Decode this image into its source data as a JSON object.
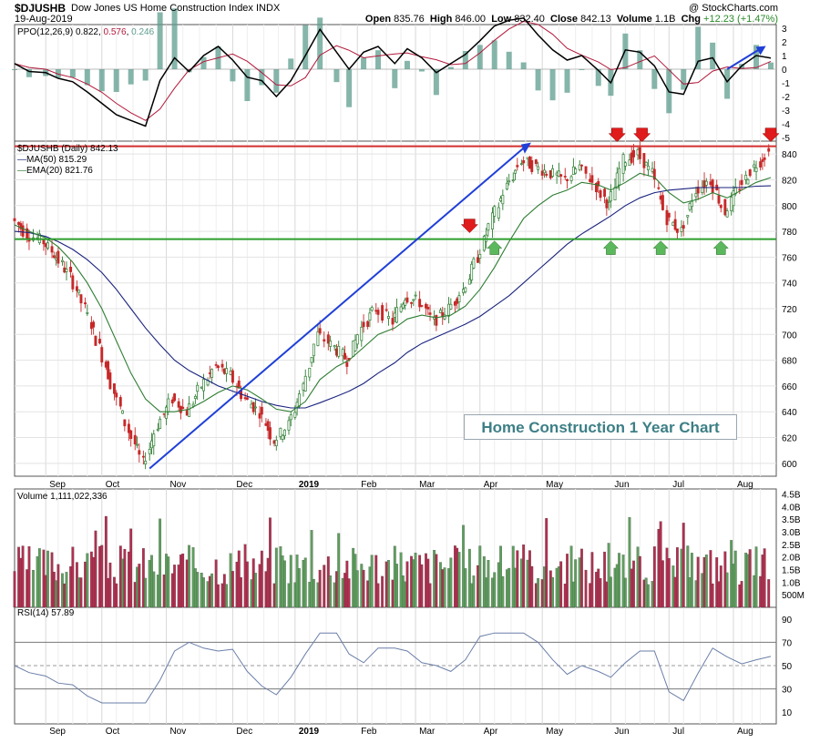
{
  "header": {
    "ticker": "$DJUSHB",
    "name": "Dow Jones US Home Construction Index",
    "exchange": "INDX",
    "copyright": "@ StockCharts.com",
    "date": "19-Aug-2019",
    "open_label": "Open",
    "open": "835.76",
    "high_label": "High",
    "high": "846.00",
    "low_label": "Low",
    "low": "832.40",
    "close_label": "Close",
    "close": "842.13",
    "volume_label": "Volume",
    "volume": "1.1B",
    "chg_label": "Chg",
    "chg": "+12.23 (+1.47%)"
  },
  "ppo": {
    "label": "PPO(12,26,9)",
    "ppo_value": "0.822",
    "signal_value": "0.576",
    "hist_value": "0.246",
    "ticks": [
      "3",
      "2",
      "1",
      "0",
      "-1",
      "-2",
      "-3",
      "-4",
      "-5"
    ],
    "colors": {
      "ppo": "#000000",
      "signal": "#b2183a",
      "hist": "#5d9c8e"
    }
  },
  "price": {
    "label": "$DJUSHB (Daily) 842.13",
    "ma50_label": "MA(50) 815.29",
    "ema20_label": "EMA(20) 821.76",
    "ticks": [
      "840",
      "820",
      "800",
      "780",
      "760",
      "740",
      "720",
      "700",
      "680",
      "660",
      "640",
      "620",
      "600"
    ],
    "colors": {
      "up": "#2e7d32",
      "down": "#c62828",
      "ma50": "#1a237e",
      "ema20": "#2e7d32",
      "resistance": "#d32f2f",
      "support": "#2e9e2e",
      "trendline": "#1f3fd8"
    }
  },
  "volume": {
    "label": "Volume 1,111,022,336",
    "ticks": [
      "4.5B",
      "4.0B",
      "3.5B",
      "3.0B",
      "2.5B",
      "2.0B",
      "1.5B",
      "1.0B",
      "500M"
    ]
  },
  "rsi": {
    "label": "RSI(14) 57.89",
    "ticks": [
      "90",
      "70",
      "50",
      "30",
      "10"
    ]
  },
  "x_axis": {
    "labels": [
      "Sep",
      "Oct",
      "Nov",
      "Dec",
      "2019",
      "Feb",
      "Mar",
      "Apr",
      "May",
      "Jun",
      "Jul",
      "Aug"
    ]
  },
  "annotation": "Home Construction 1 Year Chart",
  "chart_data": {
    "type": "line",
    "title": "Home Construction 1 Year Chart",
    "x": [
      "2018-08-20",
      "2018-08-27",
      "2018-09-04",
      "2018-09-10",
      "2018-09-17",
      "2018-09-24",
      "2018-10-01",
      "2018-10-08",
      "2018-10-15",
      "2018-10-22",
      "2018-10-29",
      "2018-11-05",
      "2018-11-12",
      "2018-11-19",
      "2018-11-26",
      "2018-12-03",
      "2018-12-10",
      "2018-12-17",
      "2018-12-24",
      "2018-12-31",
      "2019-01-07",
      "2019-01-14",
      "2019-01-22",
      "2019-01-28",
      "2019-02-04",
      "2019-02-11",
      "2019-02-19",
      "2019-02-25",
      "2019-03-04",
      "2019-03-11",
      "2019-03-18",
      "2019-03-25",
      "2019-04-01",
      "2019-04-08",
      "2019-04-15",
      "2019-04-22",
      "2019-04-29",
      "2019-05-06",
      "2019-05-13",
      "2019-05-20",
      "2019-05-28",
      "2019-06-03",
      "2019-06-10",
      "2019-06-17",
      "2019-06-24",
      "2019-07-01",
      "2019-07-08",
      "2019-07-15",
      "2019-07-22",
      "2019-07-29",
      "2019-08-05",
      "2019-08-12",
      "2019-08-19"
    ],
    "series": [
      {
        "name": "$DJUSHB",
        "values": [
          790,
          778,
          772,
          760,
          745,
          720,
          690,
          655,
          625,
          600,
          630,
          650,
          640,
          660,
          675,
          668,
          650,
          640,
          618,
          630,
          660,
          700,
          690,
          680,
          705,
          720,
          710,
          730,
          725,
          710,
          720,
          735,
          760,
          790,
          815,
          835,
          830,
          825,
          820,
          830,
          815,
          800,
          835,
          840,
          825,
          790,
          780,
          812,
          820,
          795,
          815,
          830,
          842
        ]
      },
      {
        "name": "MA(50) 815.29",
        "values": [
          780,
          779,
          776,
          772,
          766,
          758,
          748,
          735,
          720,
          705,
          692,
          680,
          672,
          666,
          660,
          656,
          652,
          648,
          645,
          643,
          643,
          647,
          652,
          656,
          662,
          670,
          678,
          686,
          693,
          698,
          703,
          708,
          714,
          722,
          730,
          740,
          750,
          760,
          770,
          778,
          786,
          792,
          800,
          806,
          810,
          812,
          813,
          814,
          814,
          814,
          814,
          815,
          815.29
        ]
      },
      {
        "name": "EMA(20) 821.76",
        "values": [
          785,
          780,
          775,
          768,
          756,
          740,
          720,
          695,
          670,
          650,
          640,
          640,
          642,
          648,
          655,
          660,
          657,
          650,
          642,
          640,
          648,
          665,
          675,
          680,
          690,
          700,
          705,
          712,
          715,
          713,
          715,
          722,
          735,
          752,
          772,
          790,
          800,
          808,
          812,
          818,
          816,
          812,
          818,
          825,
          822,
          810,
          802,
          805,
          810,
          806,
          812,
          818,
          821.76
        ]
      }
    ],
    "resistance": 846,
    "support": 774,
    "ylim": [
      590,
      850
    ],
    "yticks": [
      600,
      620,
      640,
      660,
      680,
      700,
      720,
      740,
      760,
      780,
      800,
      820,
      840
    ],
    "volume_ylim_billions": [
      0,
      4.7
    ],
    "ppo_ylim": [
      -5,
      3
    ],
    "rsi_ylim": [
      0,
      100
    ],
    "rsi_lines": [
      70,
      50,
      30
    ],
    "rsi_last": 57.89,
    "ppo_last": 0.822,
    "signal_last": 0.576,
    "hist_last": 0.246,
    "volume_last": 1111022336,
    "close_last": 842.13,
    "ma50_last": 815.29,
    "ema20_last": 821.76,
    "red_arrow_markers": [
      "2019-03-27",
      "2019-06-06",
      "2019-06-18",
      "2019-08-19"
    ],
    "green_arrow_markers": [
      "2019-04-08",
      "2019-06-03",
      "2019-06-27",
      "2019-07-26"
    ],
    "trendlines": [
      {
        "from": [
          "2018-10-24",
          596
        ],
        "to": [
          "2019-04-23",
          846
        ]
      },
      {
        "from": [
          "2019-07-29",
          0
        ],
        "to": [
          "2019-08-14",
          1.5
        ],
        "panel": "ppo"
      }
    ]
  }
}
